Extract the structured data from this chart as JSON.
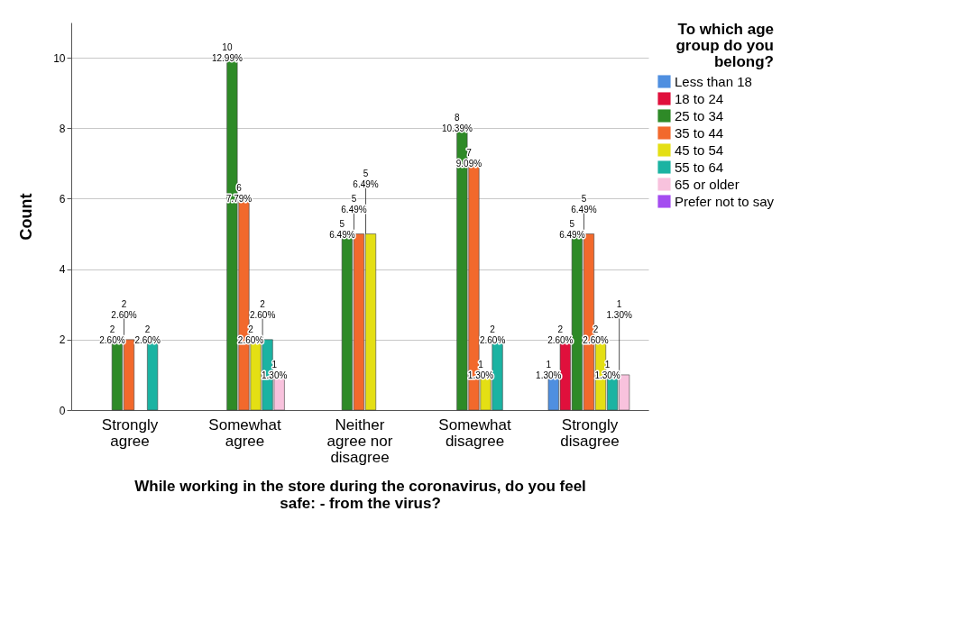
{
  "chart_data": {
    "type": "bar",
    "xlabel": "While working in the store during the coronavirus, do you feel safe: - from the virus?",
    "ylabel": "Count",
    "legend_title": "To which age group do you belong?",
    "categories": [
      "Strongly agree",
      "Somewhat agree",
      "Neither agree nor disagree",
      "Somewhat disagree",
      "Strongly disagree"
    ],
    "series": [
      {
        "name": "Less than 18",
        "color": "#4f8fe0",
        "values": [
          null,
          null,
          null,
          null,
          1
        ],
        "value_labels": [
          null,
          null,
          null,
          null,
          "1\n1.30%"
        ]
      },
      {
        "name": "18 to 24",
        "color": "#e0103c",
        "values": [
          null,
          null,
          null,
          null,
          2
        ],
        "value_labels": [
          null,
          null,
          null,
          null,
          "2\n2.60%"
        ]
      },
      {
        "name": "25 to 34",
        "color": "#2e8a27",
        "values": [
          2,
          10,
          5,
          8,
          5
        ],
        "value_labels": [
          "2\n2.60%",
          "10\n12.99%",
          "5\n6.49%",
          "8\n10.39%",
          "5\n6.49%"
        ]
      },
      {
        "name": "35 to 44",
        "color": "#f2692c",
        "values": [
          2,
          6,
          5,
          7,
          5
        ],
        "value_labels": [
          "2\n2.60%",
          "6\n7.79%",
          "5\n6.49%",
          "7\n9.09%",
          "5\n6.49%"
        ]
      },
      {
        "name": "45 to 54",
        "color": "#e4df14",
        "values": [
          null,
          2,
          5,
          1,
          2
        ],
        "value_labels": [
          null,
          "2\n2.60%",
          "5\n6.49%",
          "1\n1.30%",
          "2\n2.60%"
        ]
      },
      {
        "name": "55 to 64",
        "color": "#1bb3a2",
        "values": [
          2,
          2,
          null,
          2,
          1
        ],
        "value_labels": [
          "2\n2.60%",
          "2\n2.60%",
          null,
          "2\n2.60%",
          "1\n1.30%"
        ]
      },
      {
        "name": "65 or older",
        "color": "#f8c2dd",
        "values": [
          null,
          1,
          null,
          null,
          1
        ],
        "value_labels": [
          null,
          "1\n1.30%",
          null,
          null,
          "1\n1.30%"
        ]
      },
      {
        "name": "Prefer not to say",
        "color": "#a44cf0",
        "values": [
          null,
          null,
          null,
          null,
          null
        ],
        "value_labels": [
          null,
          null,
          null,
          null,
          null
        ]
      }
    ],
    "ylim": [
      0,
      11
    ],
    "yticks": [
      0,
      2,
      4,
      6,
      8,
      10
    ],
    "grid": "y",
    "legend": "top right"
  }
}
